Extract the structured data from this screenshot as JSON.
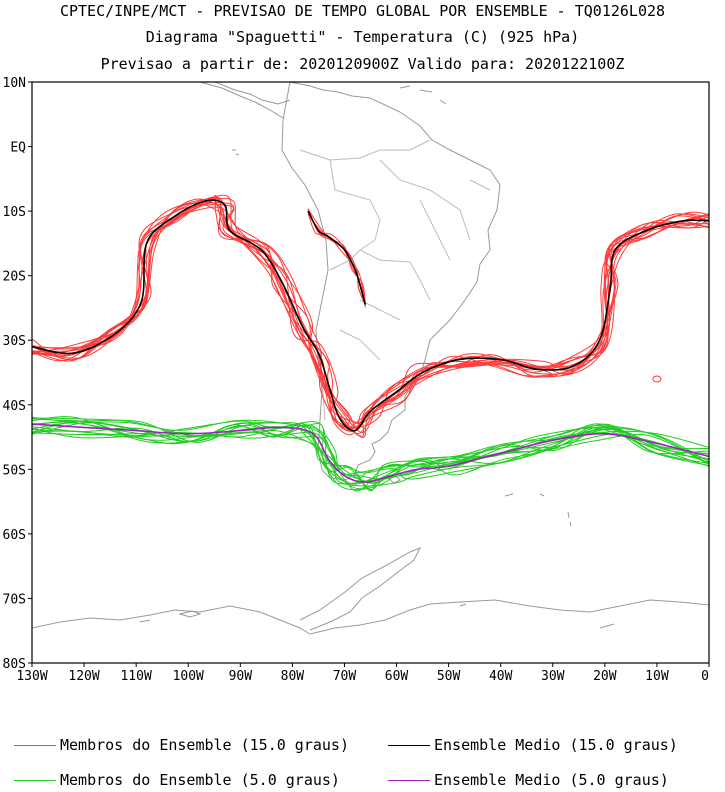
{
  "header": {
    "line1": "CPTEC/INPE/MCT - PREVISAO DE TEMPO GLOBAL POR ENSEMBLE - TQ0126L028",
    "line2": "Diagrama \"Spaguetti\" - Temperatura (C) (925 hPa)",
    "line3": "Previsao a partir de: 2020120900Z  Valido para: 2020122100Z"
  },
  "map": {
    "lat_labels": [
      "10N",
      "EQ",
      "10S",
      "20S",
      "30S",
      "40S",
      "50S",
      "60S",
      "70S",
      "80S"
    ],
    "lat_values": [
      10,
      0,
      -10,
      -20,
      -30,
      -40,
      -50,
      -60,
      -70,
      -80
    ],
    "lon_labels": [
      "130W",
      "120W",
      "110W",
      "100W",
      "90W",
      "80W",
      "70W",
      "60W",
      "50W",
      "40W",
      "30W",
      "20W",
      "10W",
      "0"
    ],
    "lon_values": [
      -130,
      -120,
      -110,
      -100,
      -90,
      -80,
      -70,
      -60,
      -50,
      -40,
      -30,
      -20,
      -10,
      0
    ],
    "lon_range": [
      -130,
      0
    ],
    "lat_range": [
      -80,
      10
    ]
  },
  "colors": {
    "member_15": "#ff3b3b",
    "mean_15": "#000000",
    "member_5": "#22cc22",
    "mean_5": "#a020c0",
    "coast": "#999999"
  },
  "legend": {
    "member_15": "Membros do Ensemble (15.0 graus)",
    "mean_15": "Ensemble Medio (15.0 graus)",
    "member_5": "Membros do Ensemble (5.0 graus)",
    "mean_5": "Ensemble Medio (5.0 graus)"
  },
  "isotherm_15_mean": [
    [
      -130,
      -31
    ],
    [
      -122,
      -32
    ],
    [
      -114,
      -29
    ],
    [
      -109,
      -24
    ],
    [
      -108,
      -15
    ],
    [
      -103,
      -11
    ],
    [
      -97,
      -8.5
    ],
    [
      -93,
      -9
    ],
    [
      -92,
      -13
    ],
    [
      -86,
      -16
    ],
    [
      -82,
      -21
    ],
    [
      -78,
      -28
    ],
    [
      -75,
      -32
    ],
    [
      -73,
      -37
    ],
    [
      -71,
      -42
    ],
    [
      -68,
      -44
    ],
    [
      -65,
      -41
    ],
    [
      -60,
      -38
    ],
    [
      -55,
      -35
    ],
    [
      -48,
      -33
    ],
    [
      -40,
      -33
    ],
    [
      -33,
      -34.5
    ],
    [
      -26,
      -34
    ],
    [
      -21,
      -30
    ],
    [
      -19,
      -22
    ],
    [
      -18,
      -16
    ],
    [
      -12,
      -13
    ],
    [
      -5,
      -11.5
    ],
    [
      0,
      -11.5
    ]
  ],
  "isotherm_15_mean_andes": [
    [
      -77,
      -10
    ],
    [
      -75,
      -13
    ],
    [
      -73,
      -14
    ],
    [
      -70,
      -16
    ],
    [
      -68,
      -19
    ],
    [
      -67,
      -21.5
    ],
    [
      -66,
      -24.5
    ]
  ],
  "isotherm_5_mean": [
    [
      -130,
      -43
    ],
    [
      -120,
      -43.5
    ],
    [
      -110,
      -44
    ],
    [
      -100,
      -44.5
    ],
    [
      -90,
      -44
    ],
    [
      -82,
      -43.5
    ],
    [
      -76,
      -44.5
    ],
    [
      -73,
      -48.5
    ],
    [
      -70,
      -51
    ],
    [
      -66,
      -52
    ],
    [
      -61,
      -51
    ],
    [
      -56,
      -50
    ],
    [
      -50,
      -49.5
    ],
    [
      -40,
      -47.5
    ],
    [
      -30,
      -45.5
    ],
    [
      -20,
      -44.5
    ],
    [
      -10,
      -46
    ],
    [
      0,
      -48
    ]
  ]
}
